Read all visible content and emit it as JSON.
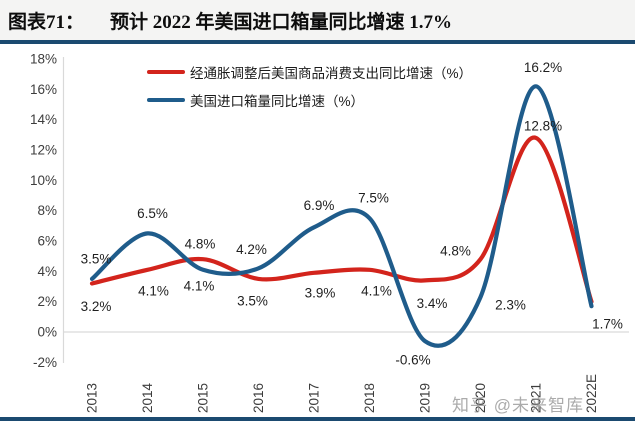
{
  "header": {
    "label": "图表71：",
    "title": "预计 2022 年美国进口箱量同比增速 1.7%"
  },
  "watermark": "知乎 @未来智库",
  "colors": {
    "accent_navy": "#1b4a70",
    "series_red": "#d3241c",
    "series_blue": "#1f5c8b",
    "gridline": "#d9d9d9",
    "axis_text": "#3d3d3d",
    "data_label_text": "#1f1f1f"
  },
  "chart_data": {
    "type": "line",
    "title": "预计 2022 年美国进口箱量同比增速 1.7%",
    "categories": [
      "2013",
      "2014",
      "2015",
      "2016",
      "2017",
      "2018",
      "2019",
      "2020",
      "2021",
      "2022E"
    ],
    "y_ticks": [
      "18%",
      "16%",
      "14%",
      "12%",
      "10%",
      "8%",
      "6%",
      "4%",
      "2%",
      "0%",
      "-2%"
    ],
    "ylim": [
      -2,
      18
    ],
    "y_step": 2,
    "grid": "zero-line-only",
    "legend_position": "top-left",
    "smooth": true,
    "series": [
      {
        "name": "经通胀调整后美国商品消费支出同比增速（%）",
        "color": "#d3241c",
        "values": [
          3.2,
          4.1,
          4.8,
          3.5,
          3.9,
          4.1,
          3.4,
          4.8,
          12.8,
          2.0
        ],
        "labels": [
          "3.2%",
          "4.1%",
          "4.8%",
          "3.5%",
          "3.9%",
          "4.1%",
          "3.4%",
          "4.8%",
          "12.8%",
          ""
        ]
      },
      {
        "name": "美国进口箱量同比增速（%）",
        "color": "#1f5c8b",
        "values": [
          3.5,
          6.5,
          4.1,
          4.2,
          6.9,
          7.5,
          -0.6,
          2.3,
          16.2,
          1.7
        ],
        "labels": [
          "3.5%",
          "6.5%",
          "4.1%",
          "4.2%",
          "6.9%",
          "7.5%",
          "-0.6%",
          "2.3%",
          "16.2%",
          "1.7%"
        ]
      }
    ]
  }
}
